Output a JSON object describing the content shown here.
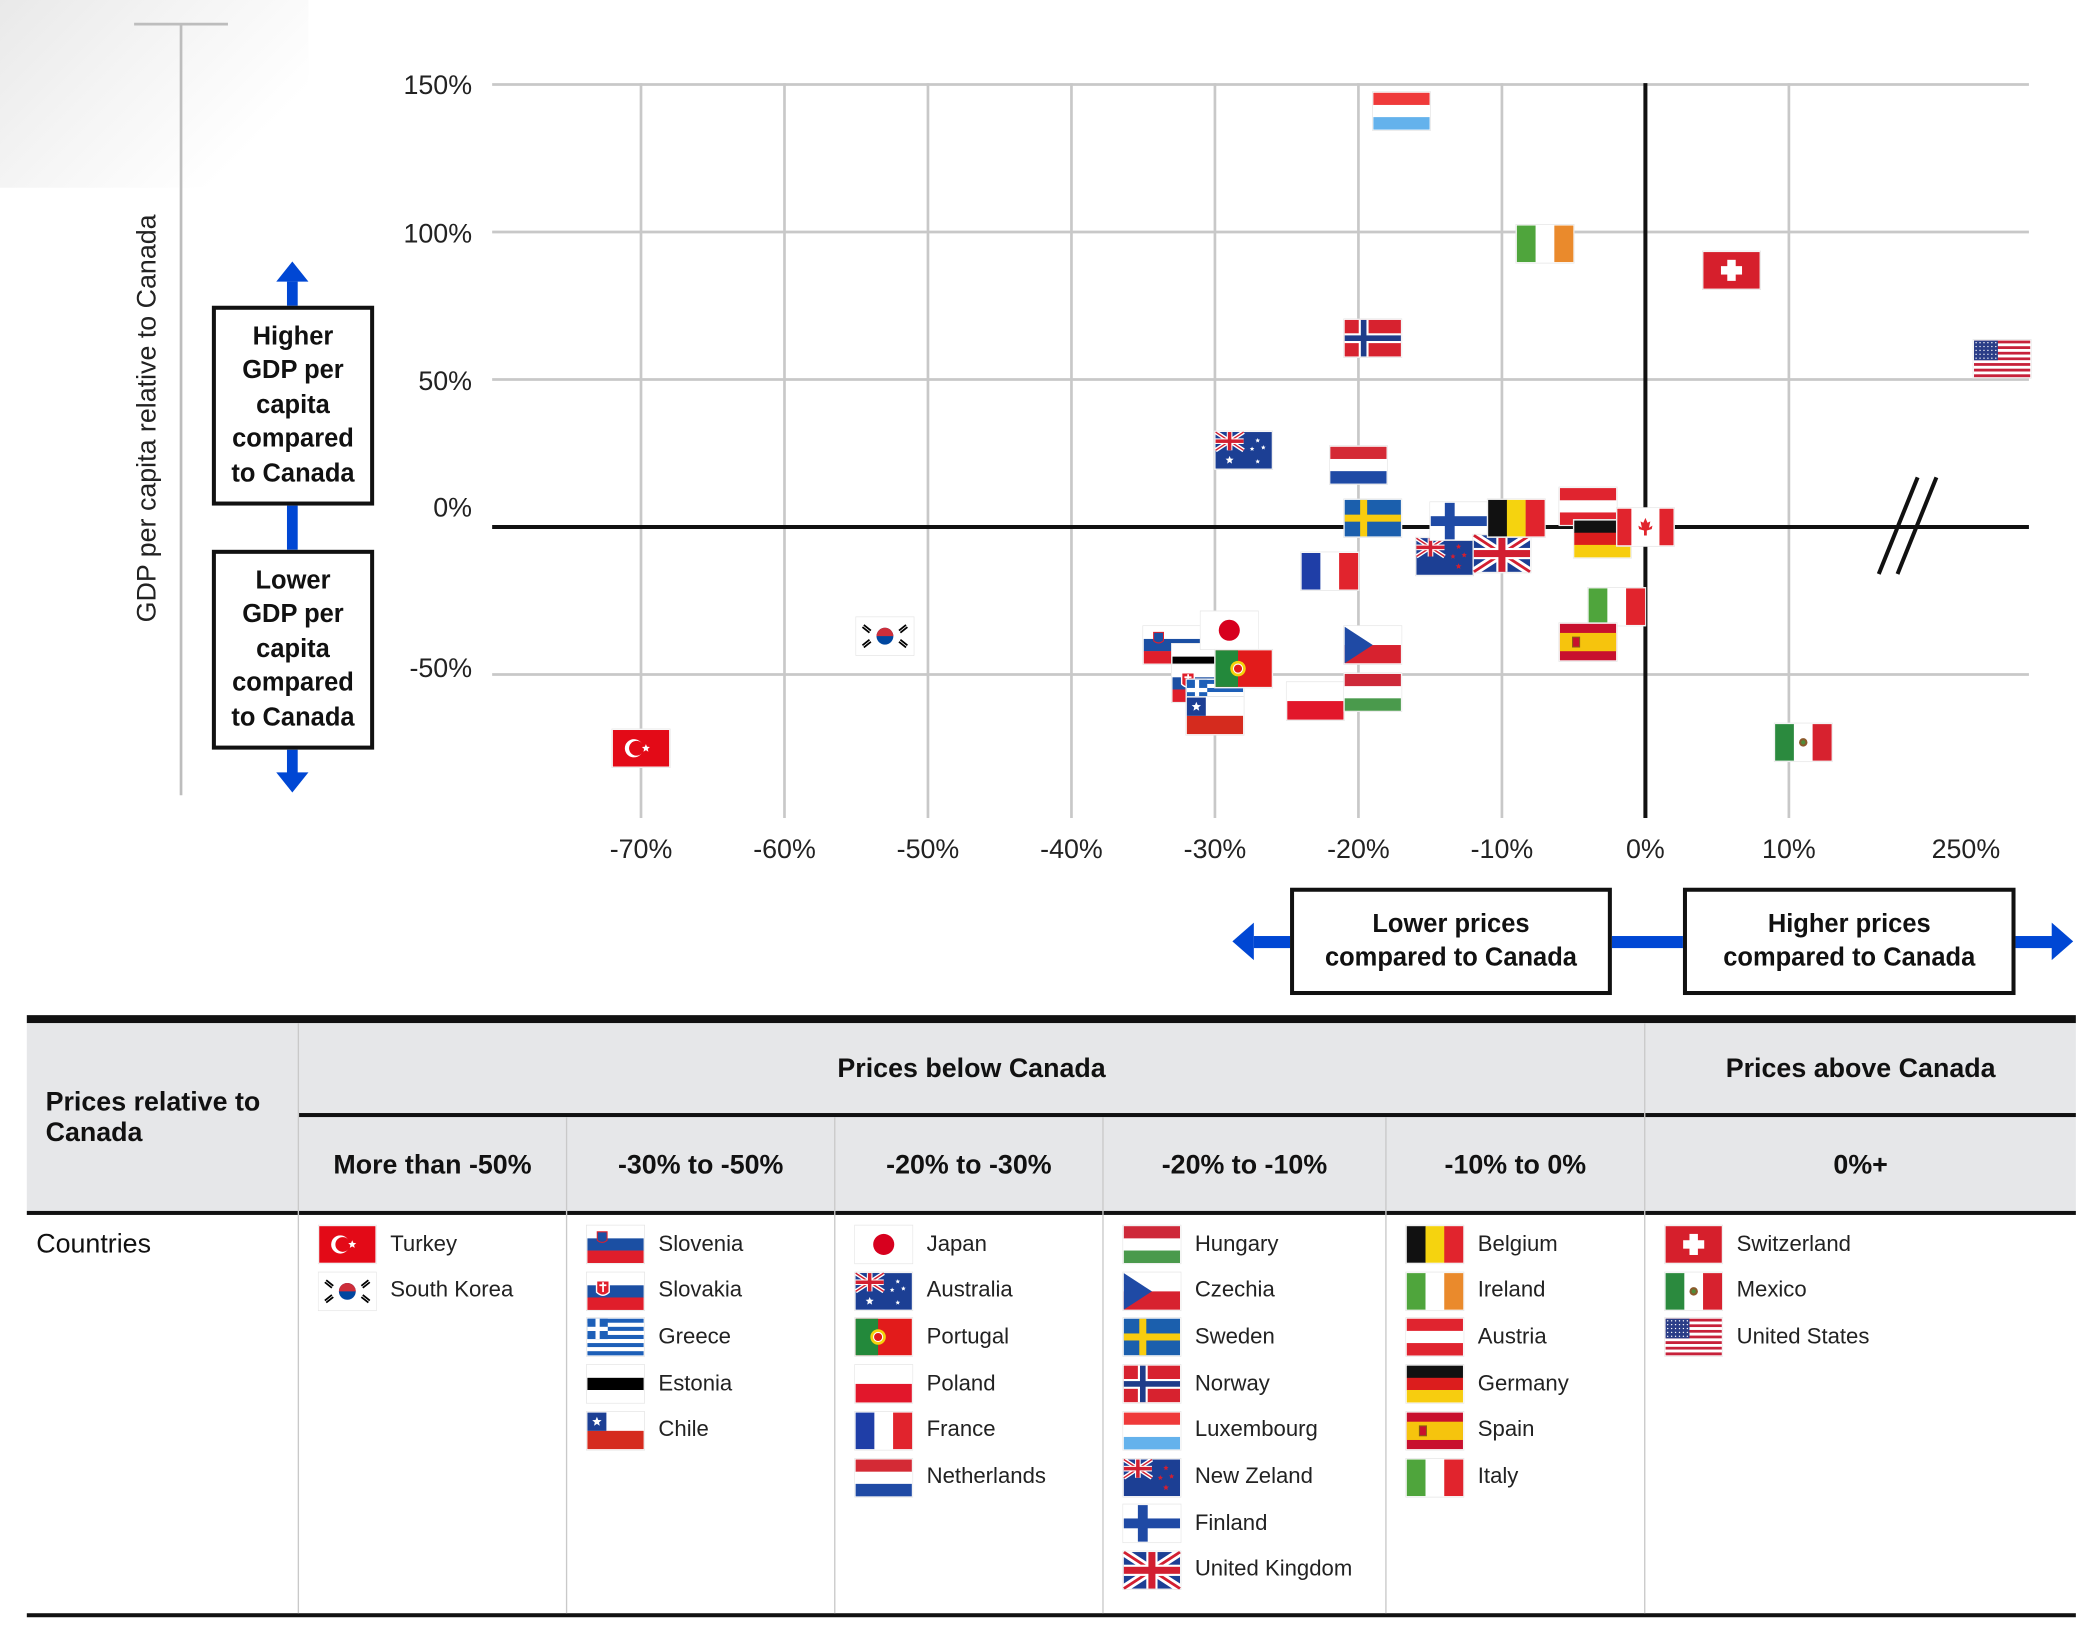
{
  "chart_data": {
    "type": "scatter",
    "ylabel": "GDP per capita relative to Canada",
    "x_tick_labels": [
      "-70%",
      "-60%",
      "-50%",
      "-40%",
      "-30%",
      "-20%",
      "-10%",
      "0%",
      "10%",
      "250%"
    ],
    "y_tick_labels": [
      "150%",
      "100%",
      "50%",
      "0%",
      "-50%"
    ],
    "xlim": [
      -77,
      27
    ],
    "ylim": [
      -87,
      150
    ],
    "x_axis_break": true,
    "grid": true,
    "points": [
      {
        "country": "Turkey",
        "flag": "turkey",
        "x": -70,
        "y": -75
      },
      {
        "country": "South Korea",
        "flag": "south-korea",
        "x": -53,
        "y": -37
      },
      {
        "country": "Slovenia",
        "flag": "slovenia",
        "x": -33,
        "y": -40
      },
      {
        "country": "Estonia",
        "flag": "estonia",
        "x": -31,
        "y": -46
      },
      {
        "country": "Slovakia",
        "flag": "slovakia",
        "x": -31,
        "y": -53
      },
      {
        "country": "Greece",
        "flag": "greece",
        "x": -30,
        "y": -58
      },
      {
        "country": "Chile",
        "flag": "chile",
        "x": -30,
        "y": -64
      },
      {
        "country": "Japan",
        "flag": "japan",
        "x": -29,
        "y": -35
      },
      {
        "country": "Portugal",
        "flag": "portugal",
        "x": -28,
        "y": -48
      },
      {
        "country": "Poland",
        "flag": "poland",
        "x": -23,
        "y": -59
      },
      {
        "country": "Australia",
        "flag": "australia",
        "x": -28,
        "y": 26
      },
      {
        "country": "France",
        "flag": "france",
        "x": -22,
        "y": -15
      },
      {
        "country": "Netherlands",
        "flag": "netherlands",
        "x": -20,
        "y": 21
      },
      {
        "country": "Luxembourg",
        "flag": "luxembourg",
        "x": -17,
        "y": 141
      },
      {
        "country": "Norway",
        "flag": "norway",
        "x": -19,
        "y": 64
      },
      {
        "country": "Sweden",
        "flag": "sweden",
        "x": -19,
        "y": 3
      },
      {
        "country": "Czechia",
        "flag": "czechia",
        "x": -19,
        "y": -40
      },
      {
        "country": "Hungary",
        "flag": "hungary",
        "x": -19,
        "y": -56
      },
      {
        "country": "New Zeland",
        "flag": "new-zealand",
        "x": -14,
        "y": -10
      },
      {
        "country": "Finland",
        "flag": "finland",
        "x": -13,
        "y": 2
      },
      {
        "country": "United Kingdom",
        "flag": "united-kingdom",
        "x": -10,
        "y": -9
      },
      {
        "country": "Belgium",
        "flag": "belgium",
        "x": -9,
        "y": 3
      },
      {
        "country": "Ireland",
        "flag": "ireland",
        "x": -7,
        "y": 96
      },
      {
        "country": "Austria",
        "flag": "austria",
        "x": -4,
        "y": 7
      },
      {
        "country": "Germany",
        "flag": "germany",
        "x": -3,
        "y": -4
      },
      {
        "country": "Italy",
        "flag": "italy",
        "x": -2,
        "y": -27
      },
      {
        "country": "Spain",
        "flag": "spain",
        "x": -4,
        "y": -39
      },
      {
        "country": "Canada",
        "flag": "canada",
        "x": 0,
        "y": 0
      },
      {
        "country": "Switzerland",
        "flag": "switzerland",
        "x": 6,
        "y": 87
      },
      {
        "country": "Mexico",
        "flag": "mexico",
        "x": 11,
        "y": -73
      },
      {
        "country": "United States",
        "flag": "united-states",
        "x": 250,
        "y": 57
      }
    ]
  },
  "labels": {
    "higher_gdp": [
      "Higher",
      "GDP per",
      "capita",
      "compared",
      "to Canada"
    ],
    "lower_gdp": [
      "Lower",
      "GDP per",
      "capita",
      "compared",
      "to Canada"
    ],
    "lower_prices": [
      "Lower prices",
      "compared to Canada"
    ],
    "higher_prices": [
      "Higher prices",
      "compared to Canada"
    ]
  },
  "table": {
    "row_header": "Prices relative to Canada",
    "row_label": "Countries",
    "group_below": "Prices below Canada",
    "group_above": "Prices above Canada",
    "columns": [
      {
        "header": "More than -50%",
        "countries": [
          {
            "name": "Turkey",
            "flag": "turkey"
          },
          {
            "name": "South Korea",
            "flag": "south-korea"
          }
        ]
      },
      {
        "header": "-30% to -50%",
        "countries": [
          {
            "name": "Slovenia",
            "flag": "slovenia"
          },
          {
            "name": "Slovakia",
            "flag": "slovakia"
          },
          {
            "name": "Greece",
            "flag": "greece"
          },
          {
            "name": "Estonia",
            "flag": "estonia"
          },
          {
            "name": "Chile",
            "flag": "chile"
          }
        ]
      },
      {
        "header": "-20% to -30%",
        "countries": [
          {
            "name": "Japan",
            "flag": "japan"
          },
          {
            "name": "Australia",
            "flag": "australia"
          },
          {
            "name": "Portugal",
            "flag": "portugal"
          },
          {
            "name": "Poland",
            "flag": "poland"
          },
          {
            "name": "France",
            "flag": "france"
          },
          {
            "name": "Netherlands",
            "flag": "netherlands"
          }
        ]
      },
      {
        "header": "-20% to -10%",
        "countries": [
          {
            "name": "Hungary",
            "flag": "hungary"
          },
          {
            "name": "Czechia",
            "flag": "czechia"
          },
          {
            "name": "Sweden",
            "flag": "sweden"
          },
          {
            "name": "Norway",
            "flag": "norway"
          },
          {
            "name": "Luxembourg",
            "flag": "luxembourg"
          },
          {
            "name": "New Zeland",
            "flag": "new-zealand"
          },
          {
            "name": "Finland",
            "flag": "finland"
          },
          {
            "name": "United Kingdom",
            "flag": "united-kingdom"
          }
        ]
      },
      {
        "header": "-10% to 0%",
        "countries": [
          {
            "name": "Belgium",
            "flag": "belgium"
          },
          {
            "name": "Ireland",
            "flag": "ireland"
          },
          {
            "name": "Austria",
            "flag": "austria"
          },
          {
            "name": "Germany",
            "flag": "germany"
          },
          {
            "name": "Spain",
            "flag": "spain"
          },
          {
            "name": "Italy",
            "flag": "italy"
          }
        ]
      },
      {
        "header": "0%+",
        "countries": [
          {
            "name": "Switzerland",
            "flag": "switzerland"
          },
          {
            "name": "Mexico",
            "flag": "mexico"
          },
          {
            "name": "United States",
            "flag": "united-states"
          }
        ]
      }
    ]
  },
  "colors": {
    "arrow": "#0047d4",
    "axis": "#111111",
    "grid": "#c8c8c8",
    "header_bg": "#e6e7e9"
  }
}
